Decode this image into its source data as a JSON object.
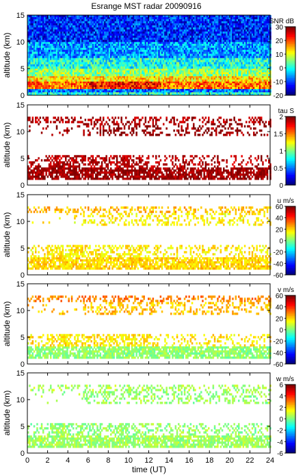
{
  "title": "Esrange MST radar 20090916",
  "x_axis": {
    "label": "time (UT)",
    "range": [
      0,
      24
    ],
    "ticks": [
      "0",
      "2",
      "4",
      "6",
      "8",
      "10",
      "12",
      "14",
      "16",
      "18",
      "20",
      "22",
      "24"
    ]
  },
  "chart_data": [
    {
      "type": "heatmap",
      "quantity": "SNR",
      "colorbar_label": "SNR dB",
      "ylabel": "altitude (km)",
      "y_range": [
        0,
        15
      ],
      "y_ticks": [
        "0",
        "5",
        "10",
        "15"
      ],
      "x_range": [
        0,
        24
      ],
      "c_range": [
        -20,
        30
      ],
      "c_ticks": [
        "30",
        "20",
        "10",
        "0",
        "-10",
        "-20"
      ],
      "bands": [
        {
          "alt": [
            0.0,
            0.6
          ],
          "value": 0
        },
        {
          "alt": [
            0.6,
            1.2
          ],
          "value": -8
        },
        {
          "alt": [
            1.2,
            2.6
          ],
          "value": 18
        },
        {
          "alt": [
            2.6,
            3.6
          ],
          "value": 13
        },
        {
          "alt": [
            3.6,
            5.0
          ],
          "value": 6
        },
        {
          "alt": [
            5.0,
            7.0
          ],
          "value": 0
        },
        {
          "alt": [
            7.0,
            10.0
          ],
          "value": -6
        },
        {
          "alt": [
            10.0,
            15.0
          ],
          "value": -12
        }
      ]
    },
    {
      "type": "heatmap",
      "quantity": "tau",
      "colorbar_label": "tau S",
      "ylabel": "altitude (km)",
      "y_range": [
        0,
        15
      ],
      "y_ticks": [
        "0",
        "5",
        "10",
        "15"
      ],
      "x_range": [
        0,
        24
      ],
      "c_range": [
        0,
        2
      ],
      "c_ticks": [
        "2",
        "1.5",
        "1",
        "0.5",
        "0"
      ],
      "bands": [
        {
          "alt": [
            1.0,
            3.3
          ],
          "value": 1.95
        },
        {
          "alt": [
            3.3,
            5.6
          ],
          "value": 1.9
        },
        {
          "alt": [
            9.2,
            11.6
          ],
          "value": 1.95
        },
        {
          "alt": [
            11.6,
            12.8
          ],
          "value": 1.9
        }
      ]
    },
    {
      "type": "heatmap",
      "quantity": "u",
      "colorbar_label": "u m/s",
      "ylabel": "altitude (km)",
      "y_range": [
        0,
        15
      ],
      "y_ticks": [
        "0",
        "5",
        "10",
        "15"
      ],
      "x_range": [
        0,
        24
      ],
      "c_range": [
        -60,
        60
      ],
      "c_ticks": [
        "60",
        "40",
        "20",
        "0",
        "-20",
        "-40",
        "-60"
      ],
      "bands": [
        {
          "alt": [
            1.0,
            3.3
          ],
          "value": 20
        },
        {
          "alt": [
            3.3,
            5.6
          ],
          "value": 17
        },
        {
          "alt": [
            9.2,
            11.6
          ],
          "value": 16
        },
        {
          "alt": [
            11.6,
            12.8
          ],
          "value": 23
        }
      ]
    },
    {
      "type": "heatmap",
      "quantity": "v",
      "colorbar_label": "v m/s",
      "ylabel": "altitude (km)",
      "y_range": [
        0,
        15
      ],
      "y_ticks": [
        "0",
        "5",
        "10",
        "15"
      ],
      "x_range": [
        0,
        24
      ],
      "c_range": [
        -60,
        60
      ],
      "c_ticks": [
        "60",
        "40",
        "20",
        "0",
        "-20",
        "-40",
        "-60"
      ],
      "bands": [
        {
          "alt": [
            1.0,
            3.3
          ],
          "value": 2
        },
        {
          "alt": [
            3.3,
            5.6
          ],
          "value": 18
        },
        {
          "alt": [
            9.2,
            11.6
          ],
          "value": 22
        },
        {
          "alt": [
            11.6,
            12.8
          ],
          "value": 30
        }
      ]
    },
    {
      "type": "heatmap",
      "quantity": "w",
      "colorbar_label": "w m/s",
      "ylabel": "altitude (km)",
      "y_range": [
        0,
        15
      ],
      "y_ticks": [
        "0",
        "5",
        "10",
        "15"
      ],
      "x_range": [
        0,
        24
      ],
      "c_range": [
        -6,
        6
      ],
      "c_ticks": [
        "6",
        "4",
        "2",
        "0",
        "-2",
        "-4",
        "-6"
      ],
      "bands": [
        {
          "alt": [
            1.0,
            3.3
          ],
          "value": 0.4
        },
        {
          "alt": [
            3.3,
            5.6
          ],
          "value": 0.2
        },
        {
          "alt": [
            9.2,
            11.6
          ],
          "value": 0.3
        },
        {
          "alt": [
            11.6,
            12.8
          ],
          "value": 0.5
        }
      ]
    }
  ]
}
